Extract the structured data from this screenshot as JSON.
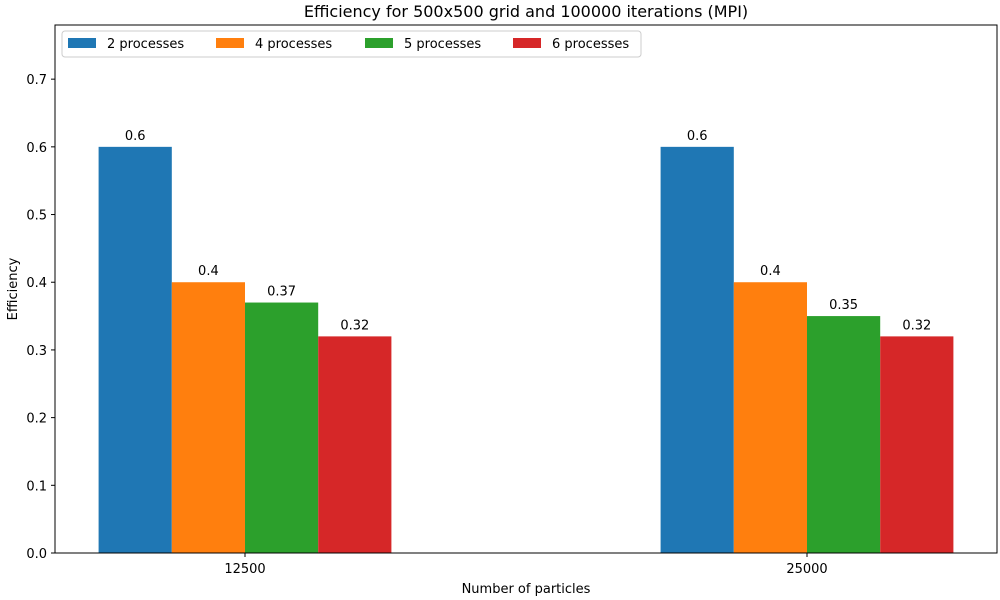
{
  "chart_data": {
    "type": "bar",
    "title": "Efficiency for 500x500 grid and 100000 iterations (MPI)",
    "xlabel": "Number of particles",
    "ylabel": "Efficiency",
    "categories": [
      "12500",
      "25000"
    ],
    "series": [
      {
        "name": "2 processes",
        "color": "#1f77b4",
        "values": [
          0.6,
          0.6
        ],
        "labels": [
          "0.6",
          "0.6"
        ]
      },
      {
        "name": "4 processes",
        "color": "#ff7f0e",
        "values": [
          0.4,
          0.4
        ],
        "labels": [
          "0.4",
          "0.4"
        ]
      },
      {
        "name": "5 processes",
        "color": "#2ca02c",
        "values": [
          0.37,
          0.35
        ],
        "labels": [
          "0.37",
          "0.35"
        ]
      },
      {
        "name": "6 processes",
        "color": "#d62728",
        "values": [
          0.32,
          0.32
        ],
        "labels": [
          "0.32",
          "0.32"
        ]
      }
    ],
    "ylim": [
      0,
      0.78
    ],
    "yticks": [
      "0.0",
      "0.1",
      "0.2",
      "0.3",
      "0.4",
      "0.5",
      "0.6",
      "0.7"
    ],
    "grid": false,
    "legend_position": "top-left"
  }
}
